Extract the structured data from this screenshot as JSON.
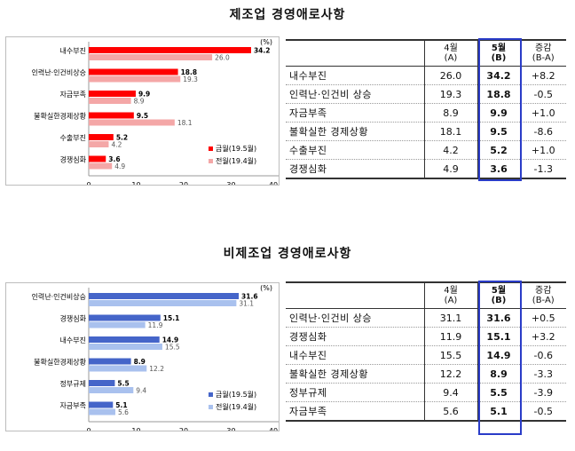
{
  "top": {
    "title": "제조업 경영애로사항",
    "table": {
      "headers": {
        "apr": [
          "4월",
          "(A)"
        ],
        "may": [
          "5월",
          "(B)"
        ],
        "chg": [
          "증감",
          "(B-A)"
        ]
      },
      "rows": [
        {
          "label": "내수부진",
          "apr": "26.0",
          "may": "34.2",
          "chg": "+8.2"
        },
        {
          "label": "인력난·인건비 상승",
          "apr": "19.3",
          "may": "18.8",
          "chg": "-0.5"
        },
        {
          "label": "자금부족",
          "apr": "8.9",
          "may": "9.9",
          "chg": "+1.0"
        },
        {
          "label": "불확실한 경제상황",
          "apr": "18.1",
          "may": "9.5",
          "chg": "-8.6"
        },
        {
          "label": "수출부진",
          "apr": "4.2",
          "may": "5.2",
          "chg": "+1.0"
        },
        {
          "label": "경쟁심화",
          "apr": "4.9",
          "may": "3.6",
          "chg": "-1.3"
        }
      ]
    }
  },
  "bottom": {
    "title": "비제조업 경영애로사항",
    "table": {
      "headers": {
        "apr": [
          "4월",
          "(A)"
        ],
        "may": [
          "5월",
          "(B)"
        ],
        "chg": [
          "증감",
          "(B-A)"
        ]
      },
      "rows": [
        {
          "label": "인력난·인건비 상승",
          "apr": "31.1",
          "may": "31.6",
          "chg": "+0.5"
        },
        {
          "label": "경쟁심화",
          "apr": "11.9",
          "may": "15.1",
          "chg": "+3.2"
        },
        {
          "label": "내수부진",
          "apr": "15.5",
          "may": "14.9",
          "chg": "-0.6"
        },
        {
          "label": "불확실한 경제상황",
          "apr": "12.2",
          "may": "8.9",
          "chg": "-3.3"
        },
        {
          "label": "정부규제",
          "apr": "9.4",
          "may": "5.5",
          "chg": "-3.9"
        },
        {
          "label": "자금부족",
          "apr": "5.6",
          "may": "5.1",
          "chg": "-0.5"
        }
      ]
    }
  },
  "chart_data": [
    {
      "type": "bar",
      "orientation": "horizontal",
      "unit": "(%)",
      "categories": [
        "내수부진",
        "인력난·인건비상승",
        "자금부족",
        "불확실한경제상황",
        "수출부진",
        "경쟁심화"
      ],
      "series": [
        {
          "name": "금월(19.5월)",
          "color": "#ff0000",
          "values": [
            34.2,
            18.8,
            9.9,
            9.5,
            5.2,
            3.6
          ]
        },
        {
          "name": "전월(19.4월)",
          "color": "#f4a7a7",
          "values": [
            26.0,
            19.3,
            8.9,
            18.1,
            4.2,
            4.9
          ]
        }
      ],
      "xlim": [
        0,
        40
      ],
      "xticks": [
        "0",
        "10",
        "20",
        "30",
        "40"
      ],
      "legend": "bottom-right",
      "grid": false
    },
    {
      "type": "bar",
      "orientation": "horizontal",
      "unit": "(%)",
      "categories": [
        "인력난·인건비상승",
        "경쟁심화",
        "내수부진",
        "불확실한경제상황",
        "정부규제",
        "자금부족"
      ],
      "series": [
        {
          "name": "금월(19.5월)",
          "color": "#4565c9",
          "values": [
            31.6,
            15.1,
            14.9,
            8.9,
            5.5,
            5.1
          ]
        },
        {
          "name": "전월(19.4월)",
          "color": "#a9c1ee",
          "values": [
            31.1,
            11.9,
            15.5,
            12.2,
            9.4,
            5.6
          ]
        }
      ],
      "xlim": [
        0,
        40
      ],
      "xticks": [
        "0",
        "10",
        "20",
        "30",
        "40"
      ],
      "legend": "bottom-right",
      "grid": false
    }
  ]
}
